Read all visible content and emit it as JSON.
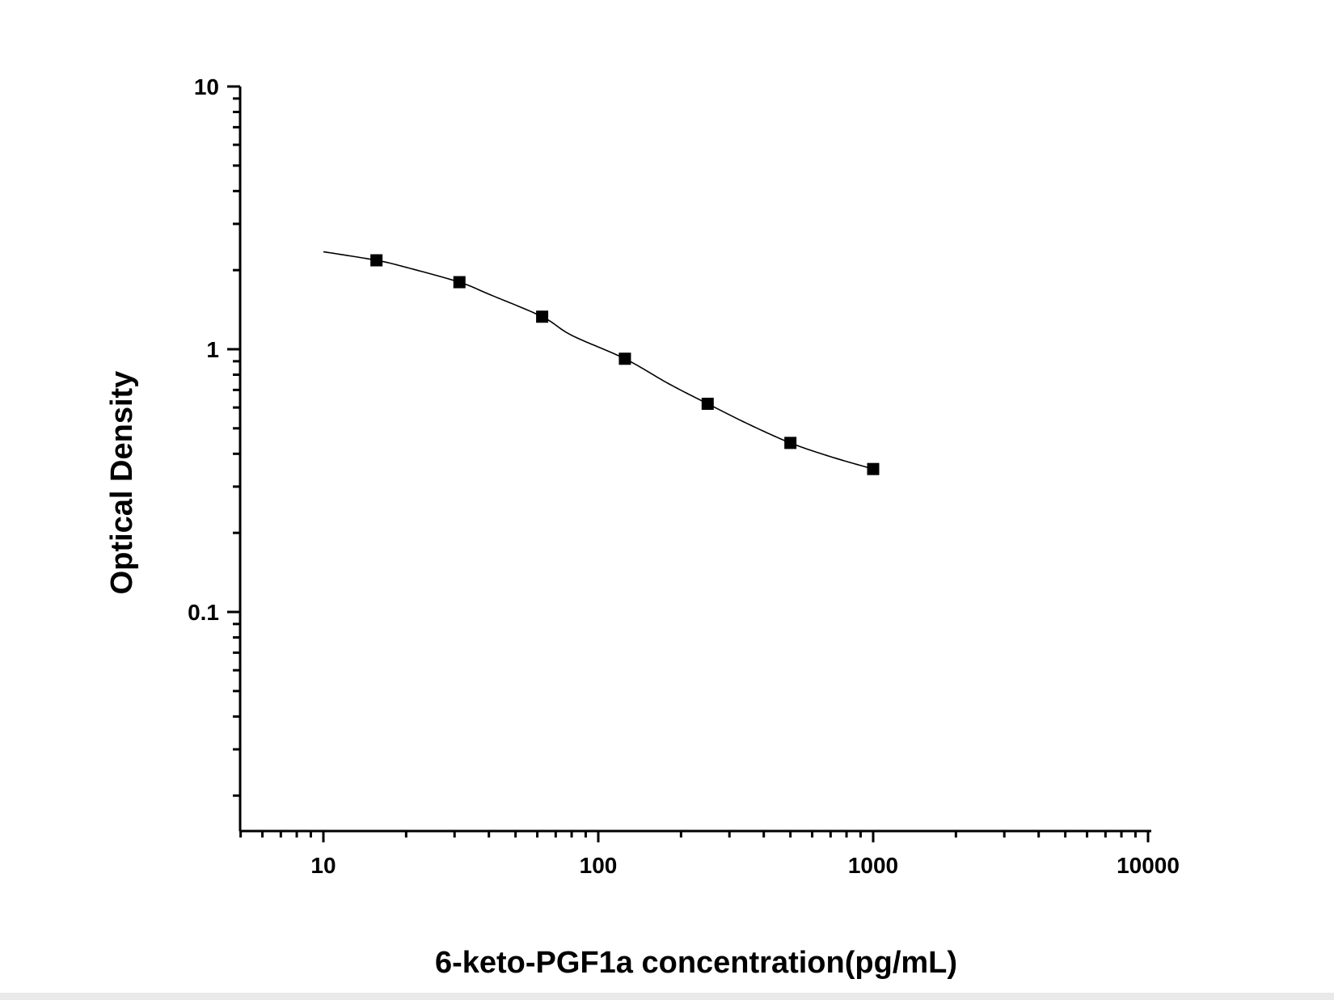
{
  "chart_data": {
    "type": "scatter",
    "title": "",
    "xlabel": "6-keto-PGF1a concentration(pg/mL)",
    "ylabel": "Optical Density",
    "xscale": "log",
    "yscale": "log",
    "xlim": [
      5,
      10000
    ],
    "ylim": [
      0.017,
      10
    ],
    "grid": false,
    "legend": "none",
    "x_ticks": [
      {
        "value": 10,
        "label": "10"
      },
      {
        "value": 100,
        "label": "100"
      },
      {
        "value": 1000,
        "label": "1000"
      },
      {
        "value": 10000,
        "label": "10000"
      }
    ],
    "y_ticks": [
      {
        "value": 0.1,
        "label": "0.1"
      },
      {
        "value": 1,
        "label": "1"
      },
      {
        "value": 10,
        "label": "10"
      }
    ],
    "series": [
      {
        "marker": "square",
        "color": "#000000",
        "x": [
          15.6,
          31.25,
          62.5,
          125,
          250,
          500,
          1000
        ],
        "y": [
          2.18,
          1.8,
          1.33,
          0.92,
          0.62,
          0.44,
          0.35
        ]
      }
    ],
    "fit_curve": {
      "color": "#000000",
      "x": [
        10,
        15.6,
        20,
        31.25,
        40,
        62.5,
        80,
        125,
        180,
        250,
        350,
        500,
        700,
        1000
      ],
      "y": [
        2.35,
        2.18,
        2.05,
        1.8,
        1.62,
        1.33,
        1.13,
        0.92,
        0.74,
        0.62,
        0.52,
        0.44,
        0.39,
        0.35
      ]
    }
  }
}
